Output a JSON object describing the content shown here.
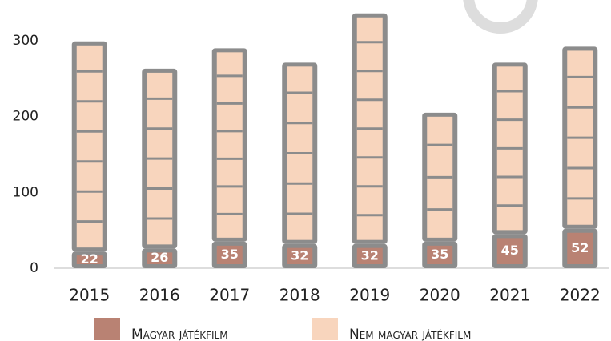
{
  "chart_data": {
    "type": "bar",
    "stacked": true,
    "categories": [
      "2015",
      "2016",
      "2017",
      "2018",
      "2019",
      "2020",
      "2021",
      "2022"
    ],
    "series": [
      {
        "name": "Magyar játékfilm",
        "color": "#b98273",
        "values": [
          22,
          26,
          35,
          32,
          32,
          35,
          45,
          52
        ]
      },
      {
        "name": "Nem magyar játékfilm",
        "color": "#f8d5bd",
        "values": [
          277,
          237,
          255,
          239,
          304,
          170,
          226,
          240
        ]
      }
    ],
    "ylim": [
      0,
      350
    ],
    "yticks": [
      0,
      100,
      200,
      300
    ],
    "grid": false
  }
}
